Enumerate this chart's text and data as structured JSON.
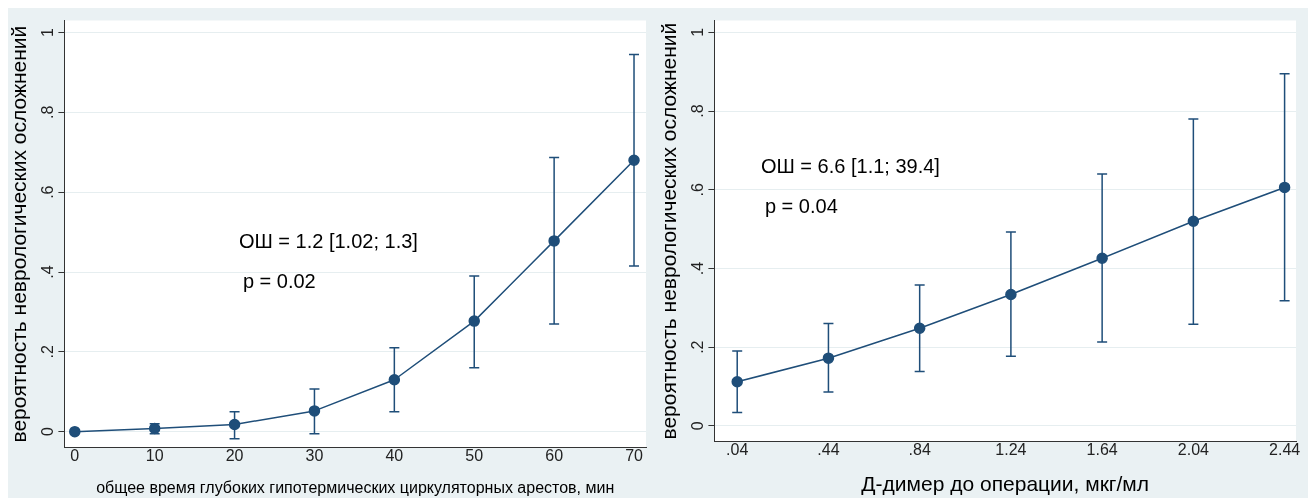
{
  "chart_data": [
    {
      "type": "line",
      "xlabel": "общее время глубоких гипотермических циркуляторных арестов, мин",
      "ylabel": "вероятность неврологических осложнений",
      "x": [
        0,
        10,
        20,
        30,
        40,
        50,
        60,
        70
      ],
      "series": [
        {
          "color": "#1f4e79",
          "values": [
            0,
            0.008,
            0.018,
            0.052,
            0.13,
            0.277,
            0.478,
            0.68
          ],
          "errors": [
            null,
            [
              -0.005,
              0.02
            ],
            [
              -0.018,
              0.05
            ],
            [
              -0.005,
              0.107
            ],
            [
              0.05,
              0.21
            ],
            [
              0.16,
              0.39
            ],
            [
              0.27,
              0.687
            ],
            [
              0.415,
              0.945
            ]
          ]
        }
      ],
      "xlim": [
        -1.3,
        71.5
      ],
      "xticks": [
        0,
        10,
        20,
        30,
        40,
        50,
        60,
        70
      ],
      "ylim": [
        -0.04,
        1.03
      ],
      "yticks": [
        {
          "value": 0,
          "label": "0"
        },
        {
          "value": 0.2,
          "label": ".2"
        },
        {
          "value": 0.4,
          "label": ".4"
        },
        {
          "value": 0.6,
          "label": ".6"
        },
        {
          "value": 0.8,
          "label": ".8"
        },
        {
          "value": 1,
          "label": "1"
        }
      ],
      "grid": "y",
      "marker": "circle",
      "annotations": [
        "ОШ = 1.2 [1.02; 1.3]",
        "p = 0.02"
      ]
    },
    {
      "type": "line",
      "xlabel": "Д-димер до операции, мкг/мл",
      "ylabel": "вероятность неврологических осложнений",
      "x": [
        0.04,
        0.44,
        0.84,
        1.24,
        1.64,
        2.04,
        2.44
      ],
      "series": [
        {
          "color": "#1f4e79",
          "values": [
            0.112,
            0.172,
            0.248,
            0.334,
            0.426,
            0.52,
            0.606
          ],
          "errors": [
            [
              0.034,
              0.19
            ],
            [
              0.086,
              0.26
            ],
            [
              0.138,
              0.358
            ],
            [
              0.177,
              0.493
            ],
            [
              0.213,
              0.64
            ],
            [
              0.258,
              0.78
            ],
            [
              0.318,
              0.895
            ]
          ]
        }
      ],
      "xlim": [
        -0.06,
        2.49
      ],
      "xticks": [
        {
          "value": 0.04,
          "label": ".04"
        },
        {
          "value": 0.44,
          "label": ".44"
        },
        {
          "value": 0.84,
          "label": ".84"
        },
        {
          "value": 1.24,
          "label": "1.24"
        },
        {
          "value": 1.64,
          "label": "1.64"
        },
        {
          "value": 2.04,
          "label": "2.04"
        },
        {
          "value": 2.44,
          "label": "2.44"
        }
      ],
      "ylim": [
        -0.04,
        1.03
      ],
      "yticks": [
        {
          "value": 0,
          "label": "0"
        },
        {
          "value": 0.2,
          "label": ".2"
        },
        {
          "value": 0.4,
          "label": ".4"
        },
        {
          "value": 0.6,
          "label": ".6"
        },
        {
          "value": 0.8,
          "label": ".8"
        },
        {
          "value": 1,
          "label": "1"
        }
      ],
      "grid": "y",
      "marker": "circle",
      "annotations": [
        "ОШ = 6.6 [1.1; 39.4]",
        "p = 0.04"
      ]
    }
  ]
}
